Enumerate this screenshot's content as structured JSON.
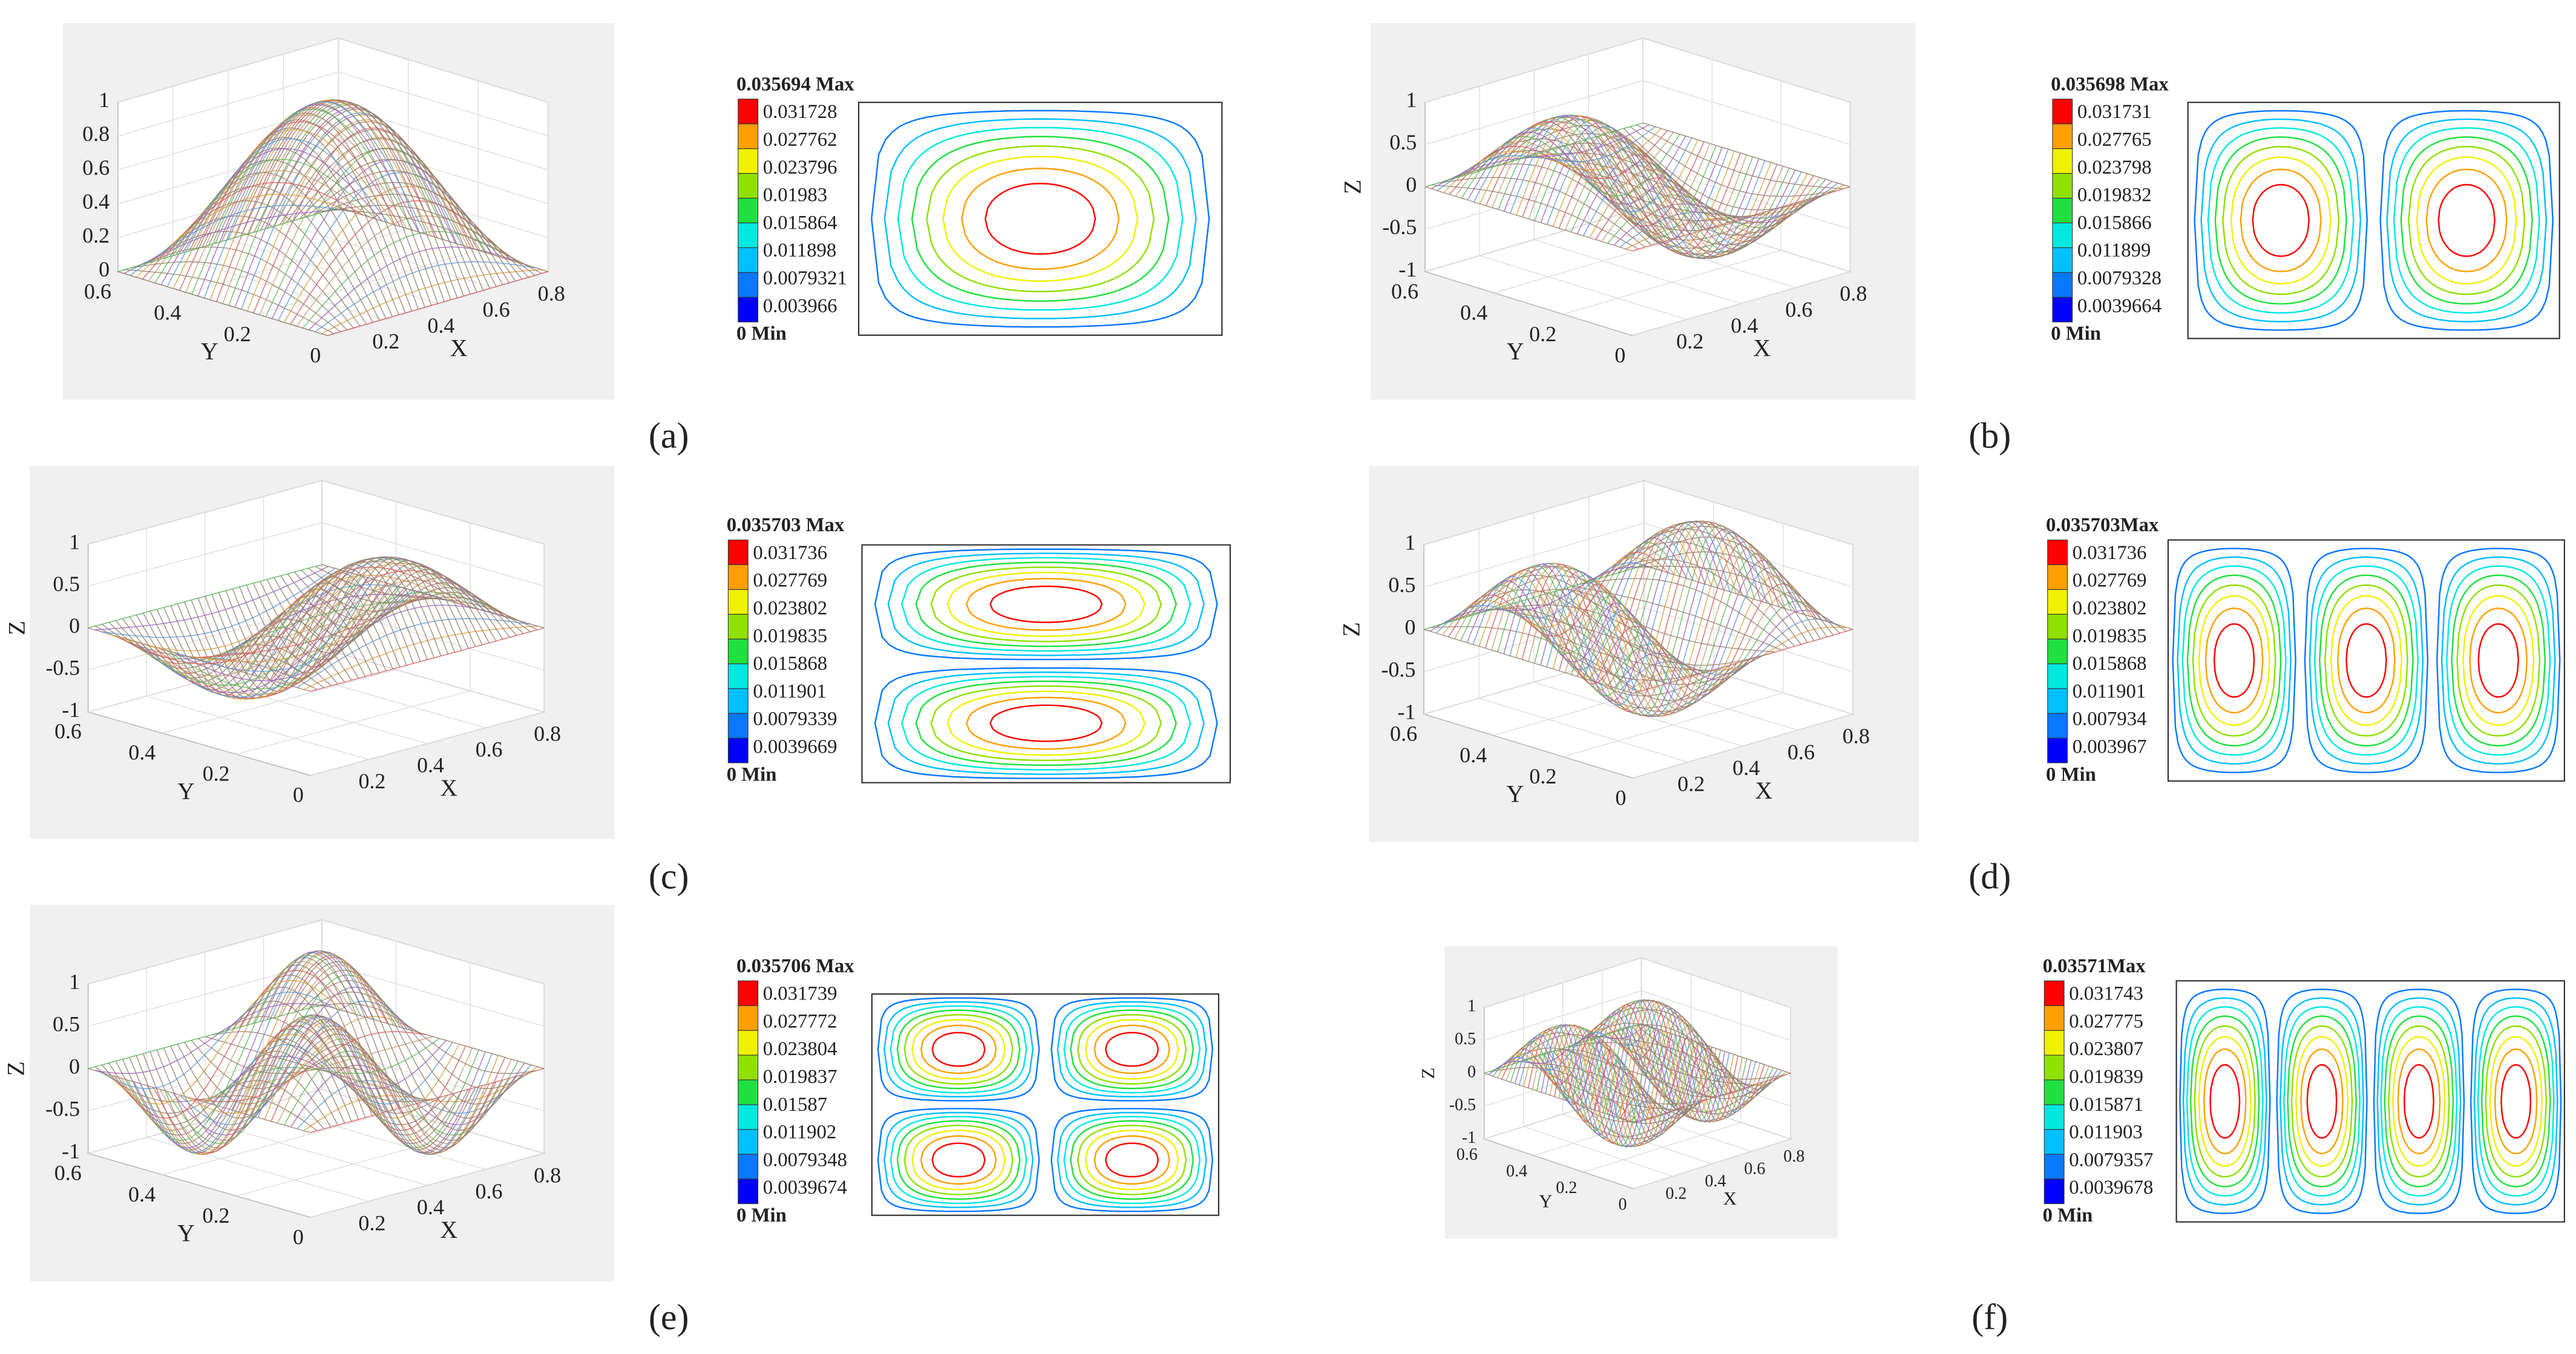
{
  "panels": [
    {
      "label": "(a)",
      "surface": {
        "zticks": [
          0,
          0.2,
          0.4,
          0.6,
          0.8,
          1
        ],
        "yticks": [
          0.6,
          0.4,
          0.2,
          0
        ],
        "xticks": [
          0.2,
          0.4,
          0.6,
          0.8
        ],
        "xlabel": "X",
        "ylabel": "Y"
      },
      "legend": {
        "max": "0.035694 Max",
        "levels": [
          "0.031728",
          "0.027762",
          "0.023796",
          "0.01983",
          "0.015864",
          "0.011898",
          "0.0079321",
          "0.003966"
        ],
        "min": "0 Min"
      }
    },
    {
      "label": "(b)",
      "surface": {
        "zticks": [
          -1,
          -0.5,
          0,
          0.5,
          1
        ],
        "yticks": [
          0.6,
          0.4,
          0.2,
          0
        ],
        "xticks": [
          0.2,
          0.4,
          0.6,
          0.8
        ],
        "xlabel": "X",
        "ylabel": "Y",
        "zlabel": "Z"
      },
      "legend": {
        "max": "0.035698 Max",
        "levels": [
          "0.031731",
          "0.027765",
          "0.023798",
          "0.019832",
          "0.015866",
          "0.011899",
          "0.0079328",
          "0.0039664"
        ],
        "min": "0 Min"
      }
    },
    {
      "label": "(c)",
      "surface": {
        "zticks": [
          -1,
          -0.5,
          0,
          0.5,
          1
        ],
        "yticks": [
          0.6,
          0.4,
          0.2,
          0
        ],
        "xticks": [
          0.2,
          0.4,
          0.6,
          0.8
        ],
        "xlabel": "X",
        "ylabel": "Y",
        "zlabel": "Z"
      },
      "legend": {
        "max": "0.035703 Max",
        "levels": [
          "0.031736",
          "0.027769",
          "0.023802",
          "0.019835",
          "0.015868",
          "0.011901",
          "0.0079339",
          "0.0039669"
        ],
        "min": "0 Min"
      }
    },
    {
      "label": "(d)",
      "surface": {
        "zticks": [
          -1,
          -0.5,
          0,
          0.5,
          1
        ],
        "yticks": [
          0.6,
          0.4,
          0.2,
          0
        ],
        "xticks": [
          0.2,
          0.4,
          0.6,
          0.8
        ],
        "xlabel": "X",
        "ylabel": "Y",
        "zlabel": "Z"
      },
      "legend": {
        "max": "0.035703Max",
        "levels": [
          "0.031736",
          "0.027769",
          "0.023802",
          "0.019835",
          "0.015868",
          "0.011901",
          "0.007934",
          "0.003967"
        ],
        "min": "0 Min"
      }
    },
    {
      "label": "(e)",
      "surface": {
        "zticks": [
          -1,
          -0.5,
          0,
          0.5,
          1
        ],
        "yticks": [
          0.6,
          0.4,
          0.2,
          0
        ],
        "xticks": [
          0.2,
          0.4,
          0.6,
          0.8
        ],
        "xlabel": "X",
        "ylabel": "Y",
        "zlabel": "Z"
      },
      "legend": {
        "max": "0.035706 Max",
        "levels": [
          "0.031739",
          "0.027772",
          "0.023804",
          "0.019837",
          "0.01587",
          "0.011902",
          "0.0079348",
          "0.0039674"
        ],
        "min": "0 Min"
      }
    },
    {
      "label": "(f)",
      "surface": {
        "zticks": [
          -1,
          -0.5,
          0,
          0.5,
          1
        ],
        "yticks": [
          0.6,
          0.4,
          0.2,
          0
        ],
        "xticks": [
          0.2,
          0.4,
          0.6,
          0.8
        ],
        "xlabel": "X",
        "ylabel": "Y",
        "zlabel": "Z"
      },
      "legend": {
        "max": "0.03571Max",
        "levels": [
          "0.031743",
          "0.027775",
          "0.023807",
          "0.019839",
          "0.015871",
          "0.011903",
          "0.0079357",
          "0.0039678"
        ],
        "min": "0 Min"
      }
    }
  ]
}
